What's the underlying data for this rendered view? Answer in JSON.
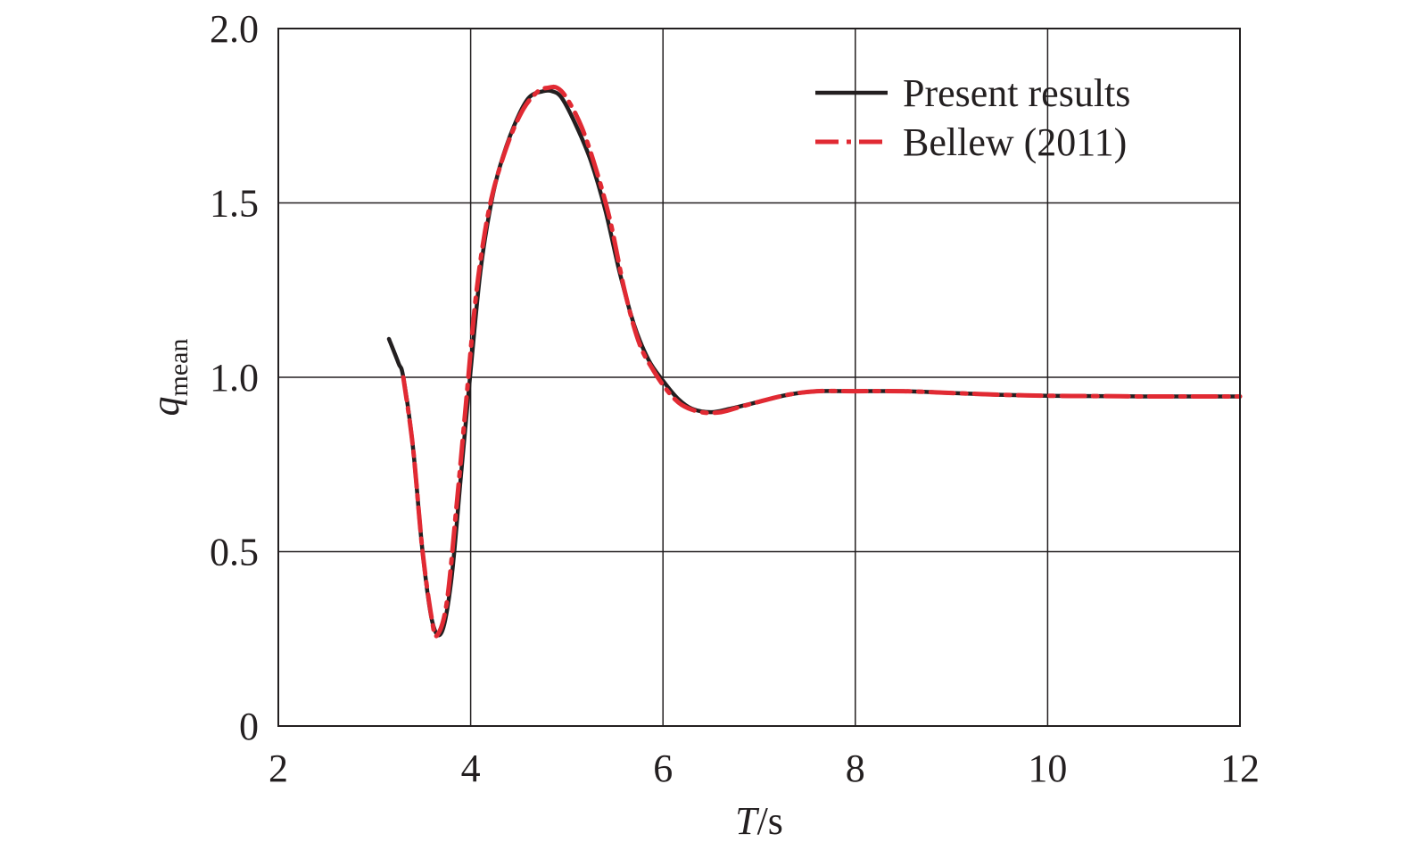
{
  "chart_data": {
    "type": "line",
    "title": "",
    "xlabel": {
      "main": "T",
      "suffix": "/s"
    },
    "ylabel": {
      "main": "q",
      "subscript": "mean"
    },
    "xlim": [
      2,
      12
    ],
    "ylim": [
      0,
      2.0
    ],
    "xticks": [
      2,
      4,
      6,
      8,
      10,
      12
    ],
    "xtick_labels": [
      "2",
      "4",
      "6",
      "8",
      "10",
      "12"
    ],
    "yticks": [
      0,
      0.5,
      1.0,
      1.5,
      2.0
    ],
    "ytick_labels": [
      "0",
      "0.5",
      "1.0",
      "1.5",
      "2.0"
    ],
    "grid": true,
    "legend_position": "top-right",
    "series": [
      {
        "name": "Present results",
        "color": "#231f20",
        "style": "solid",
        "x": [
          3.15,
          3.25,
          3.3,
          3.4,
          3.5,
          3.6,
          3.7,
          3.8,
          3.9,
          4.0,
          4.1,
          4.2,
          4.3,
          4.45,
          4.6,
          4.75,
          4.85,
          4.95,
          5.1,
          5.25,
          5.4,
          5.55,
          5.7,
          5.85,
          6.0,
          6.15,
          6.3,
          6.5,
          6.7,
          7.0,
          7.3,
          7.6,
          8.0,
          8.5,
          9.0,
          9.5,
          10.0,
          10.5,
          11.0,
          11.5,
          12.0
        ],
        "y": [
          1.11,
          1.04,
          1.0,
          0.8,
          0.5,
          0.3,
          0.27,
          0.42,
          0.72,
          1.02,
          1.3,
          1.48,
          1.6,
          1.72,
          1.8,
          1.82,
          1.82,
          1.8,
          1.72,
          1.62,
          1.48,
          1.3,
          1.15,
          1.05,
          0.99,
          0.94,
          0.91,
          0.9,
          0.91,
          0.93,
          0.95,
          0.96,
          0.96,
          0.96,
          0.955,
          0.95,
          0.947,
          0.946,
          0.945,
          0.945,
          0.945
        ]
      },
      {
        "name": "Bellew (2011)",
        "color": "#e12a33",
        "style": "dash-dot",
        "x": [
          3.3,
          3.4,
          3.5,
          3.6,
          3.65,
          3.75,
          3.85,
          3.95,
          4.05,
          4.15,
          4.25,
          4.4,
          4.55,
          4.7,
          4.8,
          4.9,
          5.0,
          5.15,
          5.3,
          5.45,
          5.6,
          5.75,
          5.9,
          6.05,
          6.2,
          6.4,
          6.6,
          6.8,
          7.0,
          7.3,
          7.6,
          8.0,
          8.5,
          9.0,
          9.5,
          10.0,
          10.5,
          11.0,
          11.5,
          12.0
        ],
        "y": [
          1.0,
          0.8,
          0.5,
          0.3,
          0.26,
          0.35,
          0.62,
          0.92,
          1.22,
          1.42,
          1.55,
          1.68,
          1.77,
          1.82,
          1.83,
          1.83,
          1.8,
          1.72,
          1.6,
          1.45,
          1.25,
          1.1,
          1.02,
          0.96,
          0.92,
          0.9,
          0.9,
          0.915,
          0.93,
          0.95,
          0.96,
          0.96,
          0.96,
          0.955,
          0.95,
          0.947,
          0.946,
          0.945,
          0.945,
          0.945
        ]
      }
    ]
  }
}
